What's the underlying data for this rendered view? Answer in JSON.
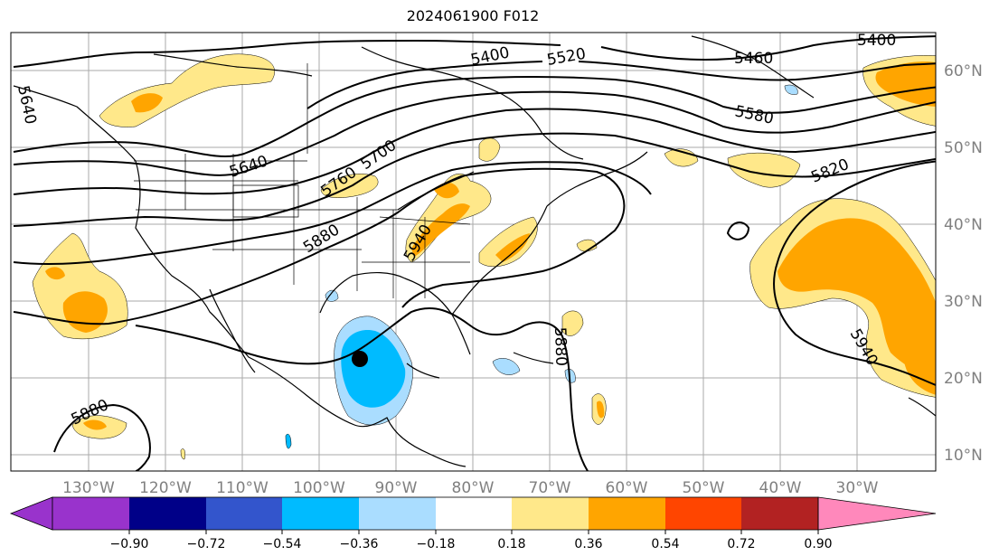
{
  "title": "2024061900 F012",
  "map": {
    "longitude_labels": [
      "130°W",
      "120°W",
      "110°W",
      "100°W",
      "90°W",
      "80°W",
      "70°W",
      "60°W",
      "50°W",
      "40°W",
      "30°W"
    ],
    "latitude_labels": [
      "60°N",
      "50°N",
      "40°N",
      "30°N",
      "20°N",
      "10°N"
    ],
    "contour_labels": [
      "5400",
      "5460",
      "5520",
      "5400",
      "5580",
      "5640",
      "5640",
      "5700",
      "5760",
      "5820",
      "5880",
      "5880",
      "5940",
      "5880",
      "5940"
    ]
  },
  "colorbar": {
    "ticks": [
      "−0.90",
      "−0.72",
      "−0.54",
      "−0.36",
      "−0.18",
      "0.18",
      "0.36",
      "0.54",
      "0.72",
      "0.90"
    ],
    "colors": {
      "lt_-0.90": "#9933cc",
      "-0.90_-0.72": "#000088",
      "-0.72_-0.54": "#3355cc",
      "-0.54_-0.36": "#00bbff",
      "-0.36_-0.18": "#aaddff",
      "-0.18_0.18": "#ffffff",
      "0.18_0.36": "#ffe88a",
      "0.36_0.54": "#ffa500",
      "0.54_0.72": "#ff4500",
      "0.72_0.90": "#b22222",
      "gt_0.90": "#ff88bb"
    }
  }
}
